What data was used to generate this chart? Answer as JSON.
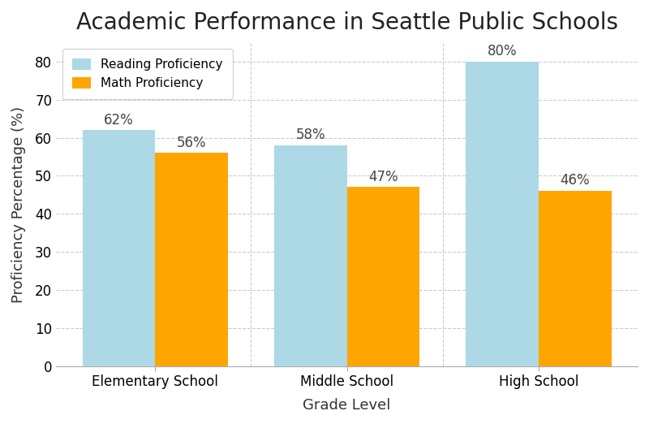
{
  "title": "Academic Performance in Seattle Public Schools",
  "xlabel": "Grade Level",
  "ylabel": "Proficiency Percentage (%)",
  "categories": [
    "Elementary School",
    "Middle School",
    "High School"
  ],
  "reading_values": [
    62,
    58,
    80
  ],
  "math_values": [
    56,
    47,
    46
  ],
  "reading_color": "#ADD8E6",
  "math_color": "#FFA500",
  "ylim": [
    0,
    85
  ],
  "yticks": [
    0,
    10,
    20,
    30,
    40,
    50,
    60,
    70,
    80
  ],
  "legend_labels": [
    "Reading Proficiency",
    "Math Proficiency"
  ],
  "bar_width": 0.38,
  "title_fontsize": 20,
  "axis_label_fontsize": 13,
  "tick_fontsize": 12,
  "annotation_fontsize": 12,
  "background_color": "#ffffff",
  "grid_color": "#cccccc",
  "grid_linestyle": "--"
}
